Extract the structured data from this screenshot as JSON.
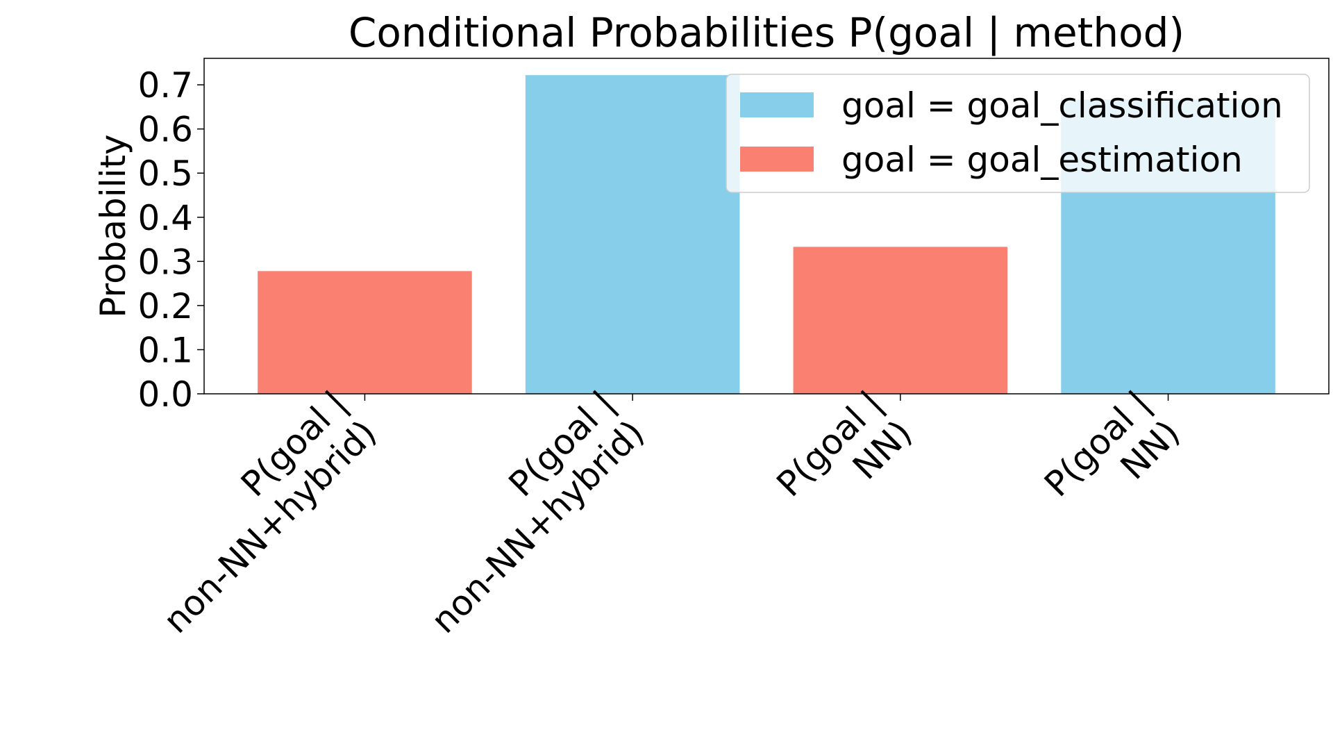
{
  "chart_data": {
    "type": "bar",
    "title": "Conditional Probabilities P(goal | method)",
    "xlabel": "",
    "ylabel": "Probability",
    "ylim": [
      0,
      0.76
    ],
    "yticks": [
      "0.0",
      "0.1",
      "0.2",
      "0.3",
      "0.4",
      "0.5",
      "0.6",
      "0.7"
    ],
    "grid": false,
    "legend_position": "top-right",
    "categories": [
      [
        "P(goal |",
        "non-NN+hybrid)"
      ],
      [
        "P(goal |",
        "non-NN+hybrid)"
      ],
      [
        "P(goal |",
        "NN)"
      ],
      [
        "P(goal |",
        "NN)"
      ]
    ],
    "bars": [
      {
        "value": 0.278,
        "series": 1
      },
      {
        "value": 0.722,
        "series": 0
      },
      {
        "value": 0.333,
        "series": 1
      },
      {
        "value": 0.667,
        "series": 0
      }
    ],
    "series": [
      {
        "name": "goal = goal_classification",
        "color": "#87CEEB"
      },
      {
        "name": "goal = goal_estimation",
        "color": "#FA8072"
      }
    ]
  }
}
